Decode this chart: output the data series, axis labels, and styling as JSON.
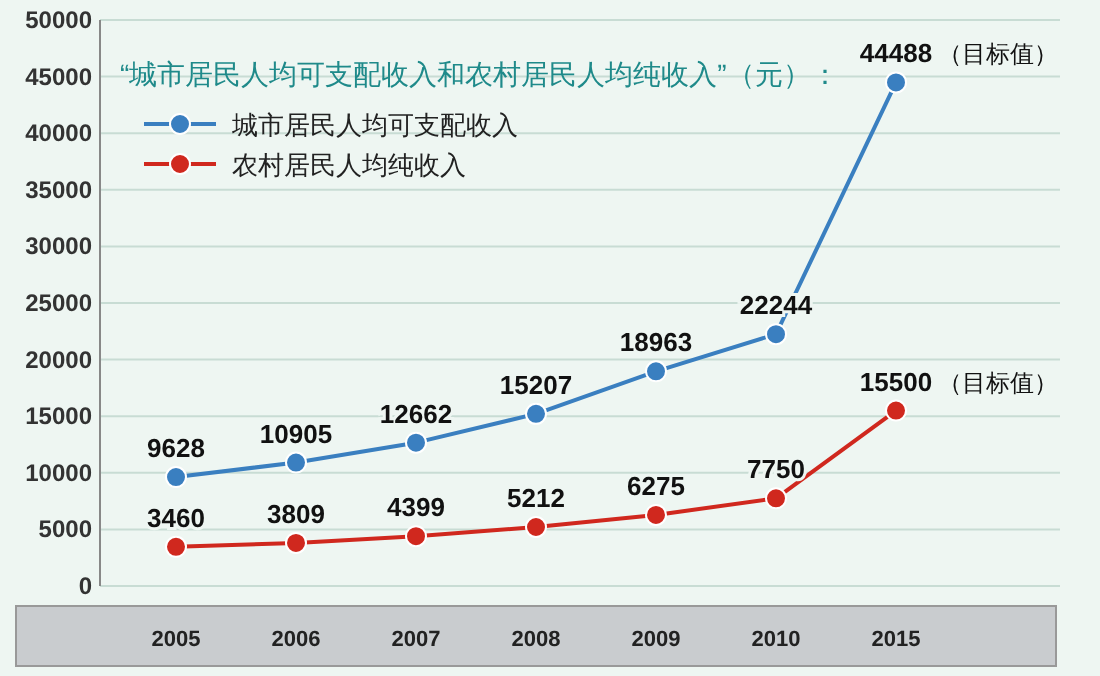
{
  "chart_data": {
    "type": "line",
    "title": "“城市居民人均可支配收入和农村居民人均纯收入”（元）：",
    "categories": [
      "2005",
      "2006",
      "2007",
      "2008",
      "2009",
      "2010",
      "2015"
    ],
    "series": [
      {
        "name": "城市居民人均可支配收入",
        "color": "#3a7fc0",
        "values": [
          9628,
          10905,
          12662,
          15207,
          18963,
          22244,
          44488
        ]
      },
      {
        "name": "农村居民人均纯收入",
        "color": "#d0281e",
        "values": [
          3460,
          3809,
          4399,
          5212,
          6275,
          7750,
          15500
        ]
      }
    ],
    "ylim": [
      0,
      50000
    ],
    "yticks": [
      0,
      5000,
      10000,
      15000,
      20000,
      25000,
      30000,
      35000,
      40000,
      45000,
      50000
    ],
    "grid": "y",
    "legend": "top left",
    "marker": "circle",
    "data_labels": true,
    "annotations": [
      {
        "text": "（目标值）",
        "x": "2015",
        "y": 44488
      },
      {
        "text": "（目标值）",
        "x": "2015",
        "y": 15500
      }
    ]
  }
}
